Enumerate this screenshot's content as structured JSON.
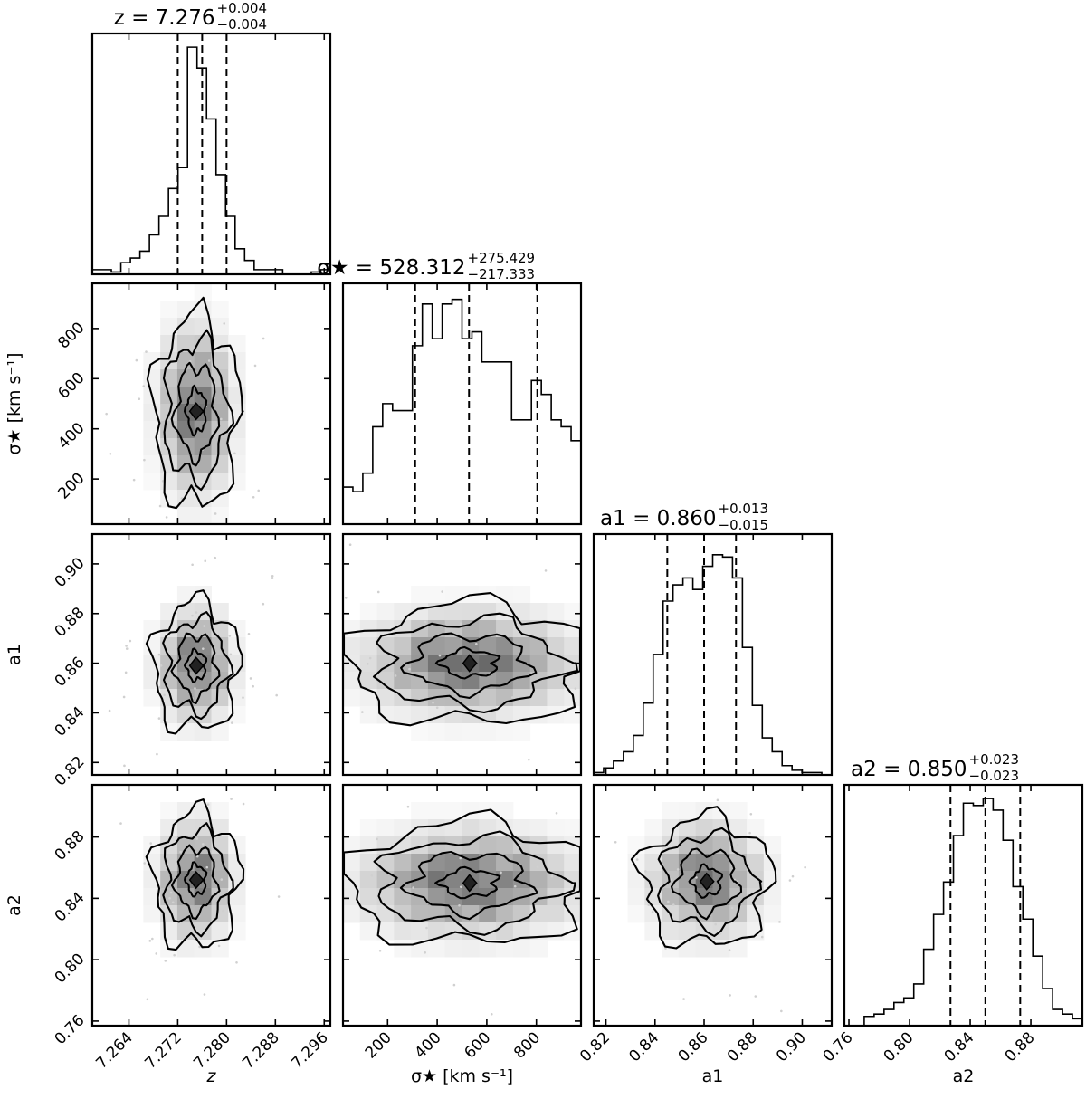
{
  "chart_data": {
    "type": "corner",
    "parameters": [
      {
        "key": "z",
        "label": "z",
        "title": "z = 7.276",
        "title_plus": "+0.004",
        "title_minus": "−0.004",
        "median": 7.276,
        "q16": 7.272,
        "q84": 7.28,
        "range": [
          7.258,
          7.297
        ]
      },
      {
        "key": "sigma",
        "label": "σ★ [km s⁻¹]",
        "title": "σ★ = 528.312",
        "title_plus": "+275.429",
        "title_minus": "−217.333",
        "median": 528.312,
        "q16": 310.979,
        "q84": 803.741,
        "range": [
          20,
          980
        ]
      },
      {
        "key": "a1",
        "label": "a1",
        "title": "a1 = 0.860",
        "title_plus": "+0.013",
        "title_minus": "−0.015",
        "median": 0.86,
        "q16": 0.845,
        "q84": 0.873,
        "range": [
          0.815,
          0.912
        ]
      },
      {
        "key": "a2",
        "label": "a2",
        "title": "a2 = 0.850",
        "title_plus": "+0.023",
        "title_minus": "−0.023",
        "median": 0.85,
        "q16": 0.827,
        "q84": 0.873,
        "range": [
          0.757,
          0.914
        ]
      }
    ],
    "ticks": {
      "z": [
        "7.264",
        "7.272",
        "7.280",
        "7.288",
        "7.296"
      ],
      "sigma": [
        "200",
        "400",
        "600",
        "800"
      ],
      "a1": [
        "0.82",
        "0.84",
        "0.86",
        "0.88",
        "0.90"
      ],
      "a2": [
        "0.76",
        "0.80",
        "0.84",
        "0.88"
      ]
    },
    "histograms": {
      "z": [
        0.02,
        0.02,
        0.01,
        0.05,
        0.07,
        0.1,
        0.17,
        0.25,
        0.37,
        0.46,
        0.98,
        0.89,
        0.67,
        0.43,
        0.25,
        0.11,
        0.06,
        0.02,
        0.02,
        0.02,
        0.0,
        0.0,
        0.0,
        0.01,
        0.02
      ],
      "sigma": [
        0.16,
        0.14,
        0.22,
        0.42,
        0.52,
        0.49,
        0.49,
        0.77,
        0.95,
        0.8,
        0.95,
        0.97,
        0.8,
        0.83,
        0.7,
        0.7,
        0.7,
        0.45,
        0.45,
        0.62,
        0.56,
        0.45,
        0.42,
        0.36
      ],
      "a1": [
        0.01,
        0.03,
        0.06,
        0.1,
        0.17,
        0.31,
        0.52,
        0.75,
        0.82,
        0.85,
        0.8,
        0.9,
        0.95,
        0.94,
        0.85,
        0.55,
        0.3,
        0.16,
        0.1,
        0.04,
        0.02,
        0.01,
        0.01,
        0.0
      ],
      "a2": [
        0.0,
        0.0,
        0.04,
        0.05,
        0.07,
        0.1,
        0.12,
        0.18,
        0.33,
        0.48,
        0.62,
        0.82,
        0.96,
        0.95,
        0.98,
        0.93,
        0.8,
        0.6,
        0.46,
        0.3,
        0.16,
        0.07,
        0.05,
        0.03
      ]
    },
    "pairs": [
      {
        "x": "z",
        "y": "sigma",
        "center": [
          7.275,
          470
        ],
        "spread": [
          0.0035,
          190
        ],
        "rho": -0.05
      },
      {
        "x": "z",
        "y": "a1",
        "center": [
          7.275,
          0.859
        ],
        "spread": [
          0.0035,
          0.013
        ],
        "rho": 0.0
      },
      {
        "x": "z",
        "y": "a2",
        "center": [
          7.275,
          0.852
        ],
        "spread": [
          0.0035,
          0.022
        ],
        "rho": 0.0
      },
      {
        "x": "sigma",
        "y": "a1",
        "center": [
          530,
          0.86
        ],
        "spread": [
          250,
          0.012
        ],
        "rho": 0.05
      },
      {
        "x": "sigma",
        "y": "a2",
        "center": [
          530,
          0.85
        ],
        "spread": [
          250,
          0.02
        ],
        "rho": 0.0
      },
      {
        "x": "a1",
        "y": "a2",
        "center": [
          0.861,
          0.851
        ],
        "spread": [
          0.013,
          0.021
        ],
        "rho": 0.05
      }
    ],
    "grid": false,
    "legend": "none"
  }
}
